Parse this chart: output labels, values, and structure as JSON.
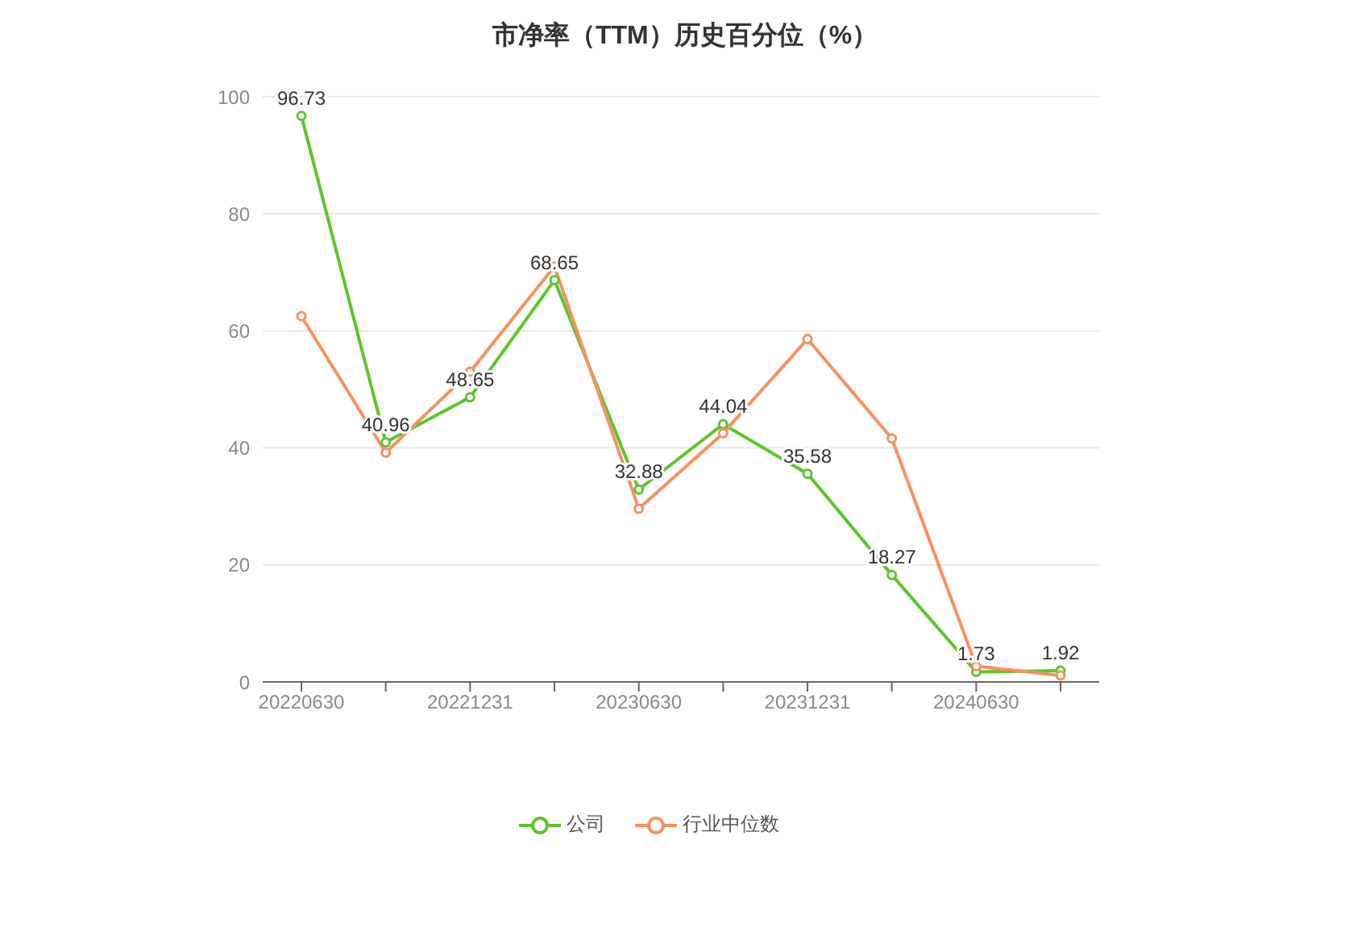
{
  "chart_data": {
    "type": "line",
    "title": "市净率（TTM）历史百分位（%）",
    "categories": [
      "20220630",
      null,
      "20221231",
      null,
      "20230630",
      null,
      "20231231",
      null,
      "20240630",
      null
    ],
    "series": [
      {
        "name": "公司",
        "color": "#5ec42d",
        "values": [
          96.73,
          40.96,
          48.65,
          68.65,
          32.88,
          44.04,
          35.58,
          18.27,
          1.73,
          1.92
        ],
        "value_labels": [
          "96.73",
          "40.96",
          "48.65",
          "68.65",
          "32.88",
          "44.04",
          "35.58",
          "18.27",
          "1.73",
          "1.92"
        ]
      },
      {
        "name": "行业中位数",
        "color": "#f5925f",
        "values": [
          62.5,
          39.2,
          53,
          71,
          29.6,
          42.5,
          58.6,
          41.6,
          2.7,
          1.1
        ]
      }
    ],
    "ylim": [
      0,
      100
    ],
    "yticks": [
      0,
      20,
      40,
      60,
      80,
      100
    ],
    "grid": "y",
    "legend": "bottom",
    "marker": "circle",
    "line_style": "solid"
  }
}
